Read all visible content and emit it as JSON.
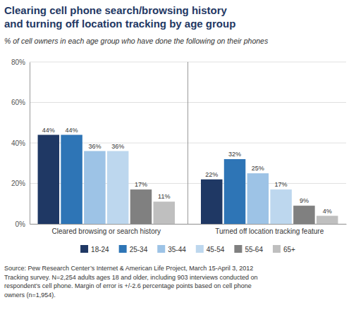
{
  "chart_data": {
    "type": "bar",
    "title": "Clearing cell phone search/browsing history\nand turning off location tracking by age group",
    "subtitle": "% of cell owners in each age group who have done the following on their phones",
    "categories": [
      "Cleared browsing or search history",
      "Turned off location tracking feature"
    ],
    "series": [
      {
        "name": "18-24",
        "color": "#1f3864",
        "values": [
          44,
          22
        ],
        "value_labels": [
          "44%",
          "22%"
        ]
      },
      {
        "name": "25-34",
        "color": "#2e75b6",
        "values": [
          44,
          32
        ],
        "value_labels": [
          "44%",
          "32%"
        ]
      },
      {
        "name": "35-44",
        "color": "#9dc3e6",
        "values": [
          36,
          25
        ],
        "value_labels": [
          "36%",
          "25%"
        ]
      },
      {
        "name": "45-54",
        "color": "#bdd7ee",
        "values": [
          36,
          17
        ],
        "value_labels": [
          "36%",
          "17%"
        ]
      },
      {
        "name": "55-64",
        "color": "#808080",
        "values": [
          17,
          9
        ],
        "value_labels": [
          "17%",
          "9%"
        ]
      },
      {
        "name": "65+",
        "color": "#bfbfbf",
        "values": [
          11,
          4
        ],
        "value_labels": [
          "11%",
          "4%"
        ]
      }
    ],
    "ylim": [
      0,
      80
    ],
    "yticks": [
      {
        "value": 0,
        "label": "0%"
      },
      {
        "value": 20,
        "label": "20%"
      },
      {
        "value": 40,
        "label": "40%"
      },
      {
        "value": 60,
        "label": "60%"
      },
      {
        "value": 80,
        "label": "80%"
      }
    ],
    "grid": true,
    "legend": "bottom",
    "data_labels": true,
    "annotations": [
      "Source: Pew Research Center’s Internet & American Life Project, March 15-April 3, 2012\nTracking survey. N=2,254 adults ages 18 and older, including 903 interviews conducted on\nrespondent’s cell phone. Margin of error is +/-2.6 percentage points based on cell phone\nowners (n=1,954)."
    ]
  }
}
